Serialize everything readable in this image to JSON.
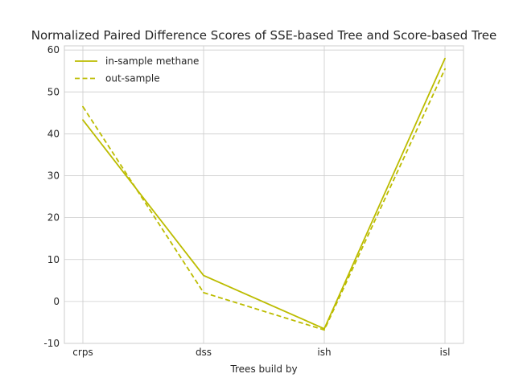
{
  "chart_data": {
    "type": "line",
    "title": "Normalized Paired Difference Scores of SSE-based Tree and Score-based Tree",
    "xlabel": "Trees build by",
    "ylabel": "",
    "categories": [
      "crps",
      "dss",
      "ish",
      "isl"
    ],
    "ylim": [
      -10,
      61
    ],
    "yticks": [
      -10,
      0,
      10,
      20,
      30,
      40,
      50,
      60
    ],
    "grid": true,
    "legend_position": "top-left",
    "series": [
      {
        "name": "in-sample methane",
        "style": "solid",
        "color": "#bcbc00",
        "values": [
          43.3,
          6.2,
          -6.5,
          58.0
        ]
      },
      {
        "name": "out-sample",
        "style": "dashed",
        "color": "#bcbc00",
        "values": [
          46.5,
          2.1,
          -6.8,
          55.5
        ]
      }
    ]
  }
}
